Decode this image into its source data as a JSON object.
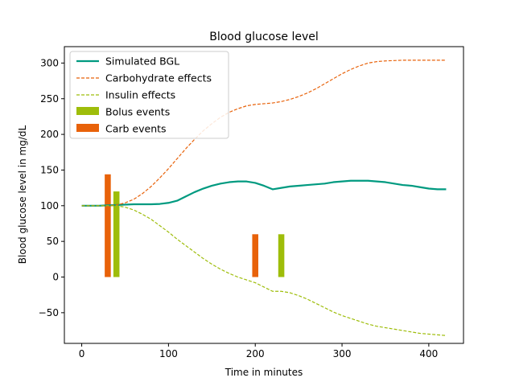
{
  "chart_data": {
    "type": "line",
    "title": "Blood glucose level",
    "xlabel": "Time in minutes",
    "ylabel": "Blood glucose level in mg/dL",
    "xlim": [
      -20,
      440
    ],
    "ylim": [
      -93,
      323
    ],
    "xticks": [
      0,
      100,
      200,
      300,
      400
    ],
    "yticks": [
      -50,
      0,
      50,
      100,
      150,
      200,
      250,
      300
    ],
    "legend_position": "top-left",
    "grid": false,
    "series": [
      {
        "name": "Simulated BGL",
        "style": "solid",
        "color": "#009a80",
        "x": [
          0,
          20,
          40,
          60,
          80,
          90,
          100,
          110,
          120,
          130,
          140,
          150,
          160,
          170,
          180,
          190,
          200,
          210,
          220,
          230,
          240,
          250,
          260,
          270,
          280,
          290,
          300,
          310,
          320,
          330,
          340,
          350,
          360,
          370,
          380,
          390,
          400,
          410,
          420
        ],
        "y": [
          100,
          100,
          101,
          102,
          102,
          102.5,
          104,
          107,
          113,
          119,
          124,
          128,
          131,
          133,
          134,
          134,
          132,
          128,
          123,
          125,
          127,
          128,
          129,
          130,
          131,
          133,
          134,
          135,
          135,
          135,
          134,
          133,
          131,
          129,
          128,
          126,
          124,
          123,
          123
        ]
      },
      {
        "name": "Carbohydrate effects",
        "style": "dashed",
        "color": "#e8620a",
        "x": [
          0,
          20,
          30,
          40,
          50,
          60,
          70,
          80,
          90,
          100,
          110,
          120,
          130,
          140,
          150,
          160,
          170,
          180,
          190,
          200,
          210,
          220,
          230,
          240,
          250,
          260,
          270,
          280,
          290,
          300,
          310,
          320,
          330,
          340,
          350,
          360,
          370,
          380,
          390,
          400,
          410,
          420
        ],
        "y": [
          100,
          100,
          100,
          101,
          104,
          109,
          117,
          127,
          139,
          152,
          166,
          180,
          193,
          205,
          215,
          224,
          231,
          236,
          240,
          242,
          243,
          244,
          246,
          249,
          253,
          258,
          264,
          271,
          278,
          285,
          291,
          296,
          300,
          302,
          303,
          303.5,
          304,
          304,
          304,
          304,
          304,
          304
        ]
      },
      {
        "name": "Insulin effects",
        "style": "dashed",
        "color": "#9ebd0a",
        "x": [
          0,
          20,
          30,
          40,
          50,
          60,
          70,
          80,
          90,
          100,
          110,
          120,
          130,
          140,
          150,
          160,
          170,
          180,
          190,
          200,
          210,
          220,
          230,
          240,
          250,
          260,
          270,
          280,
          290,
          300,
          310,
          320,
          330,
          340,
          350,
          360,
          370,
          380,
          390,
          400,
          410,
          420
        ],
        "y": [
          100,
          100,
          100,
          100,
          98,
          94,
          88,
          81,
          72,
          63,
          53,
          44,
          35,
          26,
          18,
          11,
          5,
          0,
          -4,
          -8,
          -14,
          -20,
          -20,
          -22,
          -26,
          -31,
          -37,
          -43,
          -49,
          -54,
          -58,
          -62,
          -66,
          -69,
          -71,
          -73,
          -75,
          -77,
          -79,
          -80,
          -81,
          -82
        ]
      },
      {
        "name": "Bolus events",
        "style": "bar",
        "color": "#9ebd0a",
        "x": [
          40,
          230
        ],
        "y": [
          120,
          60
        ]
      },
      {
        "name": "Carb events",
        "style": "bar",
        "color": "#e8620a",
        "x": [
          30,
          200
        ],
        "y": [
          144,
          60
        ]
      }
    ]
  }
}
